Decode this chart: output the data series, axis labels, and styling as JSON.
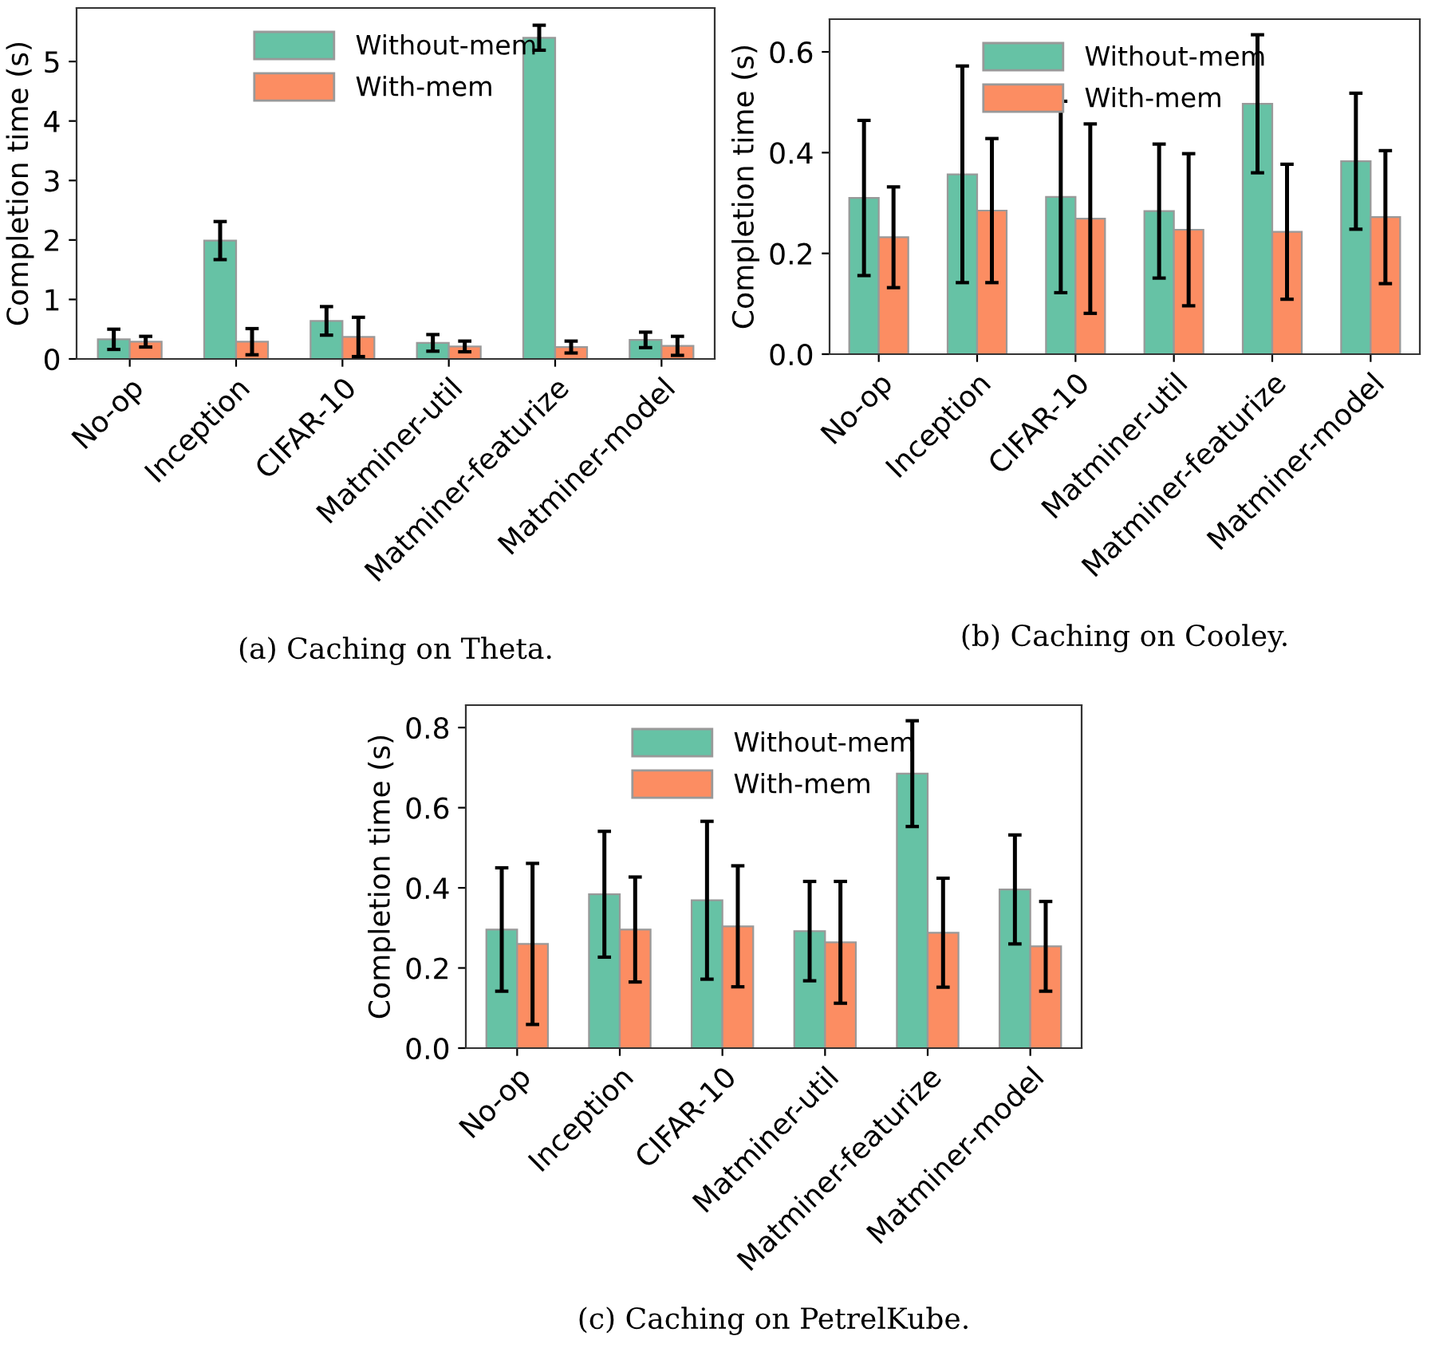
{
  "chart_data": [
    {
      "type": "bar",
      "categories": [
        "No-op",
        "Inception",
        "CIFAR-10",
        "Matminer-util",
        "Matminer-featurize",
        "Matminer-model"
      ],
      "ylabel": "Completion time (s)",
      "ylim": [
        0,
        5.9
      ],
      "yticks": [
        0,
        1,
        2,
        3,
        4,
        5
      ],
      "legend": "top",
      "grid": false,
      "annotations": [
        "(a) Caching on Theta."
      ],
      "series": [
        {
          "name": "Without-mem",
          "color": "#66c2a5",
          "values": [
            0.33,
            1.99,
            0.64,
            0.27,
            5.4,
            0.32
          ],
          "errors": [
            0.17,
            0.32,
            0.24,
            0.14,
            0.21,
            0.13
          ]
        },
        {
          "name": "With-mem",
          "color": "#fc8d62",
          "values": [
            0.29,
            0.29,
            0.37,
            0.21,
            0.2,
            0.22
          ],
          "errors": [
            0.09,
            0.22,
            0.33,
            0.09,
            0.1,
            0.16
          ]
        }
      ]
    },
    {
      "type": "bar",
      "categories": [
        "No-op",
        "Inception",
        "CIFAR-10",
        "Matminer-util",
        "Matminer-featurize",
        "Matminer-model"
      ],
      "ylabel": "Completion time (s)",
      "ylim": [
        0,
        0.665
      ],
      "yticks": [
        {
          "value": 0,
          "label": "0.0"
        },
        0.2,
        0.4,
        0.6
      ],
      "legend": "top",
      "grid": false,
      "annotations": [
        "(b) Caching on Cooley."
      ],
      "series": [
        {
          "name": "Without-mem",
          "color": "#66c2a5",
          "values": [
            0.31,
            0.357,
            0.312,
            0.284,
            0.497,
            0.383
          ],
          "errors": [
            0.154,
            0.215,
            0.19,
            0.133,
            0.137,
            0.135
          ]
        },
        {
          "name": "With-mem",
          "color": "#fc8d62",
          "values": [
            0.232,
            0.285,
            0.269,
            0.247,
            0.243,
            0.272
          ],
          "errors": [
            0.1,
            0.143,
            0.188,
            0.151,
            0.134,
            0.132
          ]
        }
      ]
    },
    {
      "type": "bar",
      "categories": [
        "No-op",
        "Inception",
        "CIFAR-10",
        "Matminer-util",
        "Matminer-featurize",
        "Matminer-model"
      ],
      "ylabel": "Completion time (s)",
      "ylim": [
        0,
        0.856
      ],
      "yticks": [
        {
          "value": 0,
          "label": "0.0"
        },
        0.2,
        0.4,
        0.6,
        0.8
      ],
      "legend": "top",
      "grid": false,
      "annotations": [
        "(c) Caching on PetrelKube."
      ],
      "series": [
        {
          "name": "Without-mem",
          "color": "#66c2a5",
          "values": [
            0.296,
            0.384,
            0.369,
            0.292,
            0.685,
            0.396
          ],
          "errors": [
            0.154,
            0.157,
            0.197,
            0.124,
            0.132,
            0.136
          ]
        },
        {
          "name": "With-mem",
          "color": "#fc8d62",
          "values": [
            0.26,
            0.296,
            0.304,
            0.264,
            0.288,
            0.254
          ],
          "errors": [
            0.201,
            0.131,
            0.151,
            0.152,
            0.136,
            0.112
          ]
        }
      ]
    }
  ]
}
